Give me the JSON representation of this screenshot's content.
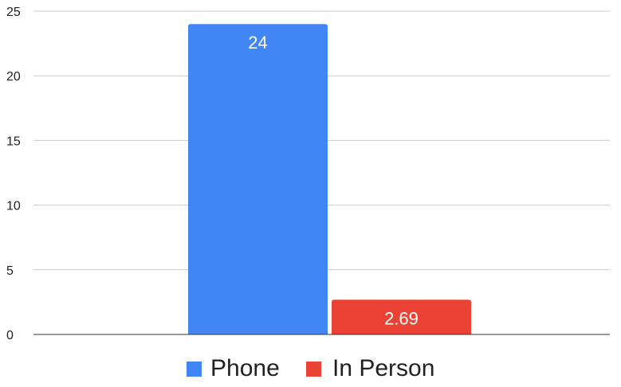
{
  "chart_data": {
    "type": "bar",
    "categories": [
      ""
    ],
    "series": [
      {
        "name": "Phone",
        "values": [
          24
        ],
        "color": "#4285f4"
      },
      {
        "name": "In Person",
        "values": [
          2.69
        ],
        "color": "#ea4335"
      }
    ],
    "data_labels": [
      "24",
      "2.69"
    ],
    "yticks": [
      0,
      5,
      10,
      15,
      20,
      25
    ],
    "ylim": [
      0,
      25
    ],
    "title": "",
    "xlabel": "",
    "ylabel": "",
    "grid": true,
    "legend_position": "bottom"
  }
}
